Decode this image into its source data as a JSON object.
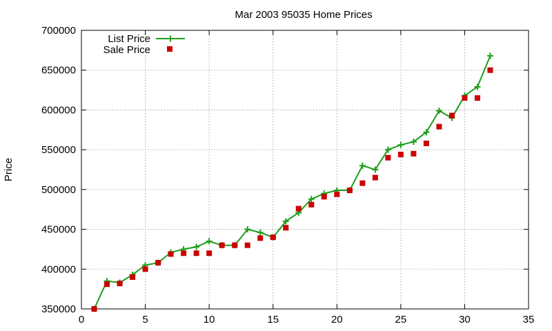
{
  "chart_data": {
    "type": "line",
    "title": "Mar 2003 95035 Home Prices",
    "xlabel": "",
    "ylabel": "Price",
    "xlim": [
      0,
      35
    ],
    "ylim": [
      350000,
      700000
    ],
    "x_ticks": [
      0,
      5,
      10,
      15,
      20,
      25,
      30,
      35
    ],
    "y_ticks": [
      350000,
      400000,
      450000,
      500000,
      550000,
      600000,
      650000,
      700000
    ],
    "grid": true,
    "legend_position": "top-left",
    "series": [
      {
        "name": "List Price",
        "style": "line-with-plus-markers",
        "color": "#1a9e1a",
        "x": [
          1,
          2,
          3,
          4,
          5,
          6,
          7,
          8,
          9,
          10,
          11,
          12,
          13,
          14,
          15,
          16,
          17,
          18,
          19,
          20,
          21,
          22,
          23,
          24,
          25,
          26,
          27,
          28,
          29,
          30,
          31,
          32
        ],
        "values": [
          350000,
          385000,
          383000,
          393000,
          405000,
          408000,
          421000,
          425000,
          428000,
          435000,
          430000,
          430000,
          450000,
          446000,
          440000,
          460000,
          471000,
          488000,
          495000,
          499000,
          499000,
          530000,
          525000,
          550000,
          556000,
          560000,
          572000,
          599000,
          590000,
          618000,
          629000,
          668000
        ]
      },
      {
        "name": "Sale Price",
        "style": "square-markers",
        "color": "#cc0000",
        "x": [
          1,
          2,
          3,
          4,
          5,
          6,
          7,
          8,
          9,
          10,
          11,
          12,
          13,
          14,
          15,
          16,
          17,
          18,
          19,
          20,
          21,
          22,
          23,
          24,
          25,
          26,
          27,
          28,
          29,
          30,
          31,
          32
        ],
        "values": [
          350000,
          381000,
          382000,
          390000,
          400000,
          408000,
          419000,
          420000,
          420000,
          420000,
          430000,
          430000,
          430000,
          439000,
          440000,
          452000,
          476000,
          481000,
          491000,
          494000,
          499000,
          508000,
          515000,
          540000,
          544000,
          545000,
          558000,
          579000,
          593000,
          615000,
          615000,
          650000
        ]
      }
    ]
  }
}
